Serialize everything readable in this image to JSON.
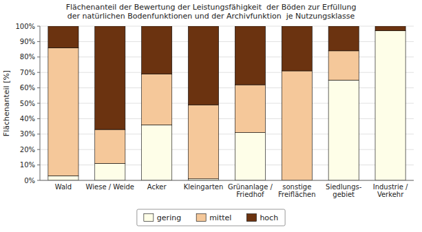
{
  "chart_data": {
    "type": "bar",
    "stacked": true,
    "title": "Flächenanteil der Bewertung der Leistungsfähigkeit  der Böden zur Erfüllung\nder natürlichen Bodenfunktionen und der Archivfunktion  je Nutzungsklasse",
    "y_label": "Flächenanteil [%]",
    "categories": [
      "Wald",
      "Wiese / Weide",
      "Acker",
      "Kleingarten",
      "Grünanlage /\nFriedhof",
      "sonstige\nFreiflächen",
      "Siedlungs-\ngebiet",
      "Industrie /\nVerkehr"
    ],
    "series": [
      {
        "name": "gering",
        "color": "#FEFEE8",
        "values": [
          3,
          11,
          36,
          1,
          31,
          0,
          65,
          97
        ]
      },
      {
        "name": "mittel",
        "color": "#F5C89A",
        "values": [
          83,
          22,
          33,
          48,
          31,
          71,
          19,
          0
        ]
      },
      {
        "name": "hoch",
        "color": "#6B3310",
        "values": [
          14,
          67,
          31,
          51,
          38,
          29,
          16,
          3
        ]
      }
    ],
    "ylim": [
      0,
      100
    ],
    "yticks": [
      {
        "value": 0,
        "label": "0%"
      },
      {
        "value": 10,
        "label": "10%"
      },
      {
        "value": 20,
        "label": "20%"
      },
      {
        "value": 30,
        "label": "30%"
      },
      {
        "value": 40,
        "label": "40%"
      },
      {
        "value": 50,
        "label": "50%"
      },
      {
        "value": 60,
        "label": "60%"
      },
      {
        "value": 70,
        "label": "70%"
      },
      {
        "value": 80,
        "label": "80%"
      },
      {
        "value": 90,
        "label": "90%"
      },
      {
        "value": 100,
        "label": "100%"
      }
    ],
    "grid": true,
    "legend": "bottom"
  }
}
